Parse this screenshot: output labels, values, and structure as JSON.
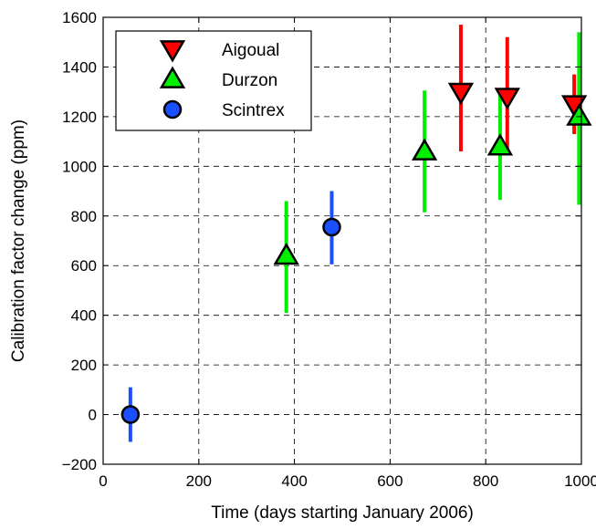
{
  "chart_data": {
    "type": "scatter",
    "title": "",
    "xlabel": "Time (days starting January 2006)",
    "ylabel": "Calibration factor change (ppm)",
    "xlim": [
      0,
      1000
    ],
    "ylim": [
      -200,
      1600
    ],
    "xticks": [
      0,
      200,
      400,
      600,
      800,
      1000
    ],
    "yticks": [
      -200,
      0,
      200,
      400,
      600,
      800,
      1000,
      1200,
      1400,
      1600
    ],
    "grid": true,
    "legend_position": "top-left",
    "series": [
      {
        "name": "Aigoual",
        "marker": "triangle-down",
        "color": "#ff0000",
        "points": [
          {
            "x": 748,
            "y": 1300,
            "err_low": 1060,
            "err_high": 1570
          },
          {
            "x": 845,
            "y": 1280,
            "err_low": 1060,
            "err_high": 1520
          },
          {
            "x": 985,
            "y": 1250,
            "err_low": 1130,
            "err_high": 1370
          }
        ]
      },
      {
        "name": "Durzon",
        "marker": "triangle-up",
        "color": "#00ee00",
        "points": [
          {
            "x": 383,
            "y": 640,
            "err_low": 410,
            "err_high": 860
          },
          {
            "x": 672,
            "y": 1060,
            "err_low": 815,
            "err_high": 1305
          },
          {
            "x": 830,
            "y": 1080,
            "err_low": 865,
            "err_high": 1290
          },
          {
            "x": 995,
            "y": 1200,
            "err_low": 845,
            "err_high": 1540
          }
        ]
      },
      {
        "name": "Scintrex",
        "marker": "circle",
        "color": "#1a4fff",
        "points": [
          {
            "x": 57,
            "y": 0,
            "err_low": -110,
            "err_high": 110
          },
          {
            "x": 478,
            "y": 755,
            "err_low": 605,
            "err_high": 900
          }
        ]
      }
    ]
  }
}
